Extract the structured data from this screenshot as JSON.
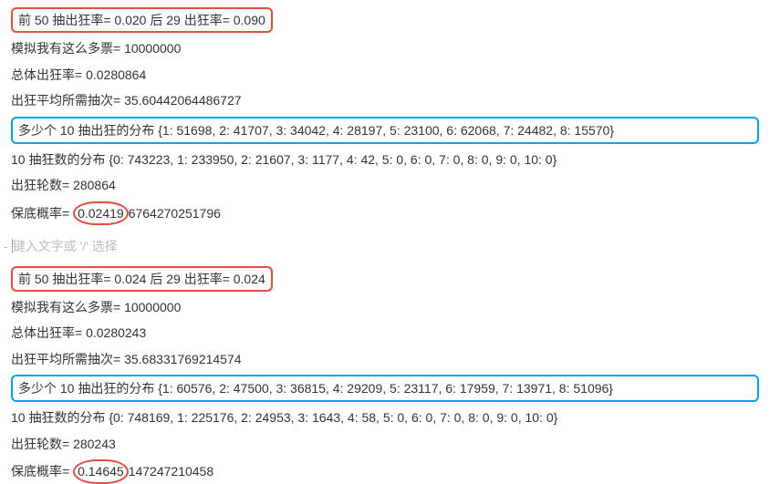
{
  "block1": {
    "header": "前 50 抽出狂率= 0.020 后 29 出狂率= 0.090",
    "line2": "模拟我有这么多票= 10000000",
    "line3": "总体出狂率= 0.0280864",
    "line4": "出狂平均所需抽次= 35.60442064486727",
    "dist_label": "多少个 10 抽出狂的分布 {1: 51698, 2: 41707, 3: 34042, 4: 28197, 5: 23100, 6: 62068, 7: 24482, 8: 15570}",
    "line6": "10 抽狂数的分布 {0: 743223, 1: 233950, 2: 21607, 3: 1177, 4: 42, 5: 0, 6: 0, 7: 0, 8: 0, 9: 0, 10: 0}",
    "line7": "出狂轮数= 280864",
    "line8_prefix": "保底概率= ",
    "line8_circled": "0.02419",
    "line8_suffix": "6764270251796"
  },
  "placeholder_text": "键入文字或 '/' 选择",
  "block2": {
    "header": "前 50 抽出狂率= 0.024 后 29 出狂率= 0.024",
    "line2": "模拟我有这么多票= 10000000",
    "line3": "总体出狂率= 0.0280243",
    "line4": "出狂平均所需抽次= 35.68331769214574",
    "dist_label": "多少个 10 抽出狂的分布 {1: 60576, 2: 47500, 3: 36815, 4: 29209, 5: 23117, 6: 17959, 7: 13971, 8: 51096}",
    "line6": "10 抽狂数的分布 {0: 748169, 1: 225176, 2: 24953, 3: 1643, 4: 58, 5: 0, 6: 0, 7: 0, 8: 0, 9: 0, 10: 0}",
    "line7": "出狂轮数= 280243",
    "line8_prefix": "保底概率= ",
    "line8_circled": "0.14645",
    "line8_suffix": "147247210458"
  }
}
